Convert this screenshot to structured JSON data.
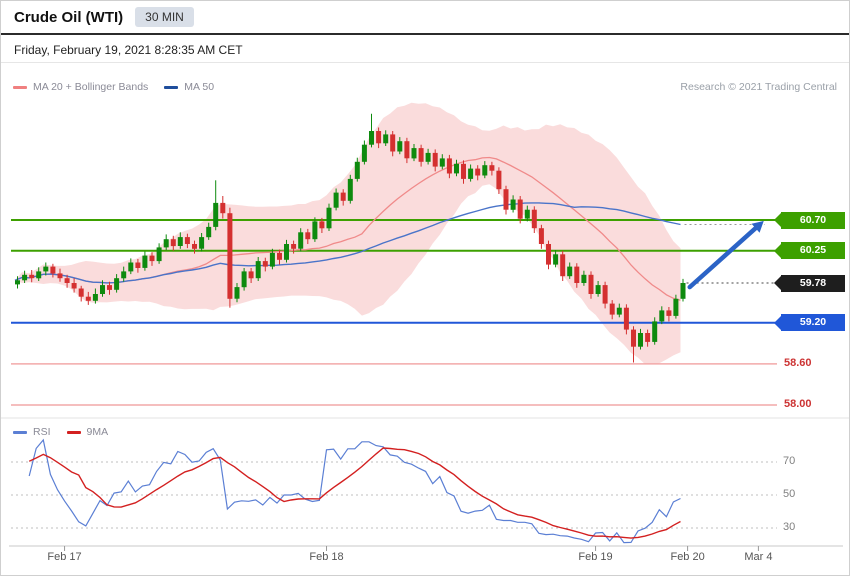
{
  "header": {
    "title": "Crude Oil (WTI)",
    "timeframe": "30 MIN",
    "timestamp": "Friday, February 19, 2021 8:28:35 AM CET"
  },
  "legend": {
    "ma20_bb": "MA 20 + Bollinger Bands",
    "ma50": "MA 50",
    "copyright": "Research © 2021 Trading Central"
  },
  "rsi_legend": {
    "rsi": "RSI",
    "ma9": "9MA"
  },
  "colors": {
    "candle_up": "#0E8A0E",
    "candle_down": "#D43030",
    "band_fill": "#F6BFBF",
    "ma20": "#F08A8A",
    "ma50": "#4A74C9",
    "ma20_swatch": "#F08080",
    "ma50_swatch": "#1F4E9C",
    "rsi_line": "#5B7FD4",
    "rsi_ma": "#D32020",
    "resistance_green": "#3DA000",
    "support_blue": "#2057D8",
    "last_dark": "#1E1E1E",
    "minor_support_red": "#CC3333",
    "arrow_blue": "#2B63C6"
  },
  "chart_data": {
    "type": "candlestick",
    "title": "Crude Oil (WTI)",
    "interval": "30 MIN",
    "ohlc_format": [
      "open",
      "high",
      "low",
      "close"
    ],
    "overlays": [
      "MA 20",
      "Bollinger Bands (20,2)",
      "MA 50"
    ],
    "grid": false,
    "legend_position": "top-left",
    "y_range_price": [
      57.85,
      62.45
    ],
    "candles": [
      [
        59.76,
        59.88,
        59.7,
        59.82
      ],
      [
        59.82,
        59.96,
        59.78,
        59.9
      ],
      [
        59.9,
        59.97,
        59.79,
        59.85
      ],
      [
        59.85,
        60.01,
        59.81,
        59.95
      ],
      [
        59.95,
        60.08,
        59.89,
        60.02
      ],
      [
        60.02,
        60.06,
        59.86,
        59.92
      ],
      [
        59.92,
        59.99,
        59.8,
        59.85
      ],
      [
        59.85,
        59.9,
        59.71,
        59.78
      ],
      [
        59.78,
        59.85,
        59.64,
        59.7
      ],
      [
        59.7,
        59.74,
        59.51,
        59.58
      ],
      [
        59.58,
        59.65,
        59.46,
        59.52
      ],
      [
        59.52,
        59.7,
        59.48,
        59.62
      ],
      [
        59.62,
        59.82,
        59.58,
        59.75
      ],
      [
        59.75,
        59.8,
        59.61,
        59.68
      ],
      [
        59.68,
        59.91,
        59.64,
        59.85
      ],
      [
        59.85,
        60.02,
        59.8,
        59.95
      ],
      [
        59.95,
        60.14,
        59.91,
        60.08
      ],
      [
        60.08,
        60.13,
        59.93,
        60.0
      ],
      [
        60.0,
        60.24,
        59.96,
        60.18
      ],
      [
        60.18,
        60.23,
        60.03,
        60.1
      ],
      [
        60.1,
        60.36,
        60.06,
        60.3
      ],
      [
        60.3,
        60.49,
        60.26,
        60.42
      ],
      [
        60.42,
        60.47,
        60.25,
        60.32
      ],
      [
        60.32,
        60.52,
        60.28,
        60.45
      ],
      [
        60.45,
        60.5,
        60.29,
        60.35
      ],
      [
        60.35,
        60.4,
        60.21,
        60.28
      ],
      [
        60.28,
        60.51,
        60.24,
        60.45
      ],
      [
        60.45,
        60.66,
        60.41,
        60.6
      ],
      [
        60.6,
        61.28,
        60.55,
        60.95
      ],
      [
        60.95,
        61.05,
        60.72,
        60.8
      ],
      [
        60.8,
        60.88,
        59.42,
        59.55
      ],
      [
        59.55,
        59.78,
        59.5,
        59.72
      ],
      [
        59.72,
        60.0,
        59.67,
        59.95
      ],
      [
        59.95,
        60.0,
        59.78,
        59.85
      ],
      [
        59.85,
        60.16,
        59.81,
        60.1
      ],
      [
        60.1,
        60.15,
        59.95,
        60.02
      ],
      [
        60.02,
        60.28,
        59.98,
        60.22
      ],
      [
        60.22,
        60.27,
        60.05,
        60.12
      ],
      [
        60.12,
        60.41,
        60.08,
        60.35
      ],
      [
        60.35,
        60.4,
        60.21,
        60.28
      ],
      [
        60.28,
        60.58,
        60.24,
        60.52
      ],
      [
        60.52,
        60.57,
        60.35,
        60.42
      ],
      [
        60.42,
        60.74,
        60.38,
        60.68
      ],
      [
        60.68,
        60.73,
        60.51,
        60.58
      ],
      [
        60.58,
        60.94,
        60.54,
        60.88
      ],
      [
        60.88,
        61.16,
        60.84,
        61.1
      ],
      [
        61.1,
        61.15,
        60.91,
        60.98
      ],
      [
        60.98,
        61.36,
        60.94,
        61.3
      ],
      [
        61.3,
        61.61,
        61.26,
        61.55
      ],
      [
        61.55,
        61.86,
        61.51,
        61.8
      ],
      [
        61.8,
        62.25,
        61.76,
        62.0
      ],
      [
        62.0,
        62.05,
        61.75,
        61.82
      ],
      [
        61.82,
        62.01,
        61.78,
        61.95
      ],
      [
        61.95,
        62.0,
        61.63,
        61.7
      ],
      [
        61.7,
        61.91,
        61.66,
        61.85
      ],
      [
        61.85,
        61.9,
        61.53,
        61.6
      ],
      [
        61.6,
        61.81,
        61.56,
        61.75
      ],
      [
        61.75,
        61.8,
        61.48,
        61.55
      ],
      [
        61.55,
        61.74,
        61.51,
        61.68
      ],
      [
        61.68,
        61.73,
        61.41,
        61.48
      ],
      [
        61.48,
        61.66,
        61.44,
        61.6
      ],
      [
        61.6,
        61.65,
        61.31,
        61.38
      ],
      [
        61.38,
        61.58,
        61.34,
        61.52
      ],
      [
        61.52,
        61.57,
        61.23,
        61.3
      ],
      [
        61.3,
        61.51,
        61.26,
        61.45
      ],
      [
        61.45,
        61.5,
        61.28,
        61.35
      ],
      [
        61.35,
        61.56,
        61.31,
        61.5
      ],
      [
        61.5,
        61.55,
        61.35,
        61.42
      ],
      [
        61.42,
        61.47,
        61.08,
        61.15
      ],
      [
        61.15,
        61.2,
        60.78,
        60.85
      ],
      [
        60.85,
        61.06,
        60.81,
        61.0
      ],
      [
        61.0,
        61.05,
        60.65,
        60.72
      ],
      [
        60.72,
        60.91,
        60.68,
        60.85
      ],
      [
        60.85,
        60.9,
        60.51,
        60.58
      ],
      [
        60.58,
        60.63,
        60.28,
        60.35
      ],
      [
        60.35,
        60.4,
        59.98,
        60.05
      ],
      [
        60.05,
        60.26,
        60.01,
        60.2
      ],
      [
        60.2,
        60.25,
        59.81,
        59.88
      ],
      [
        59.88,
        60.08,
        59.84,
        60.02
      ],
      [
        60.02,
        60.07,
        59.71,
        59.78
      ],
      [
        59.78,
        59.96,
        59.74,
        59.9
      ],
      [
        59.9,
        59.95,
        59.55,
        59.62
      ],
      [
        59.62,
        59.81,
        59.58,
        59.75
      ],
      [
        59.75,
        59.8,
        59.41,
        59.48
      ],
      [
        59.48,
        59.53,
        59.25,
        59.32
      ],
      [
        59.32,
        59.48,
        59.28,
        59.42
      ],
      [
        59.42,
        59.47,
        59.03,
        59.1
      ],
      [
        59.1,
        59.15,
        58.62,
        58.85
      ],
      [
        58.85,
        59.11,
        58.81,
        59.05
      ],
      [
        59.05,
        59.1,
        58.85,
        58.92
      ],
      [
        58.92,
        59.28,
        58.88,
        59.22
      ],
      [
        59.22,
        59.44,
        59.18,
        59.38
      ],
      [
        59.38,
        59.43,
        59.22,
        59.3
      ],
      [
        59.3,
        59.61,
        59.26,
        59.55
      ],
      [
        59.55,
        59.84,
        59.51,
        59.78
      ]
    ],
    "levels": [
      {
        "price": 60.7,
        "label": "60.70",
        "role": "resistance",
        "tag": "tag-green",
        "line": "#3DA000",
        "line_w": 2
      },
      {
        "price": 60.25,
        "label": "60.25",
        "role": "resistance",
        "tag": "tag-green",
        "line": "#3DA000",
        "line_w": 2
      },
      {
        "price": 59.78,
        "label": "59.78",
        "role": "last-price",
        "tag": "tag-dark",
        "line": null
      },
      {
        "price": 59.2,
        "label": "59.20",
        "role": "support",
        "tag": "tag-blue",
        "line": "#2057D8",
        "line_w": 2
      },
      {
        "price": 58.6,
        "label": "58.60",
        "role": "support",
        "tag": "red-text",
        "line": "#F2A9A9",
        "line_w": 1.5
      },
      {
        "price": 58.0,
        "label": "58.00",
        "role": "support",
        "tag": "red-text",
        "line": "#F2A9A9",
        "line_w": 1.5
      }
    ],
    "x_ticks": [
      {
        "label": "Feb 17",
        "i": 7
      },
      {
        "label": "Feb 18",
        "i": 44
      },
      {
        "label": "Feb 19",
        "i": 82
      },
      {
        "label": "Feb 20",
        "i": 95
      },
      {
        "label": "Mar 4",
        "i": 105
      }
    ],
    "rsi": {
      "period": 14,
      "ma_period": 9,
      "scale_ticks": [
        70,
        50,
        30
      ]
    },
    "annotation_arrow": {
      "direction": "up",
      "from_i": 95.3,
      "from_price": 59.72,
      "to_i": 104.6,
      "to_price": 60.58,
      "target_label": "60.70",
      "color": "#2B63C6"
    }
  }
}
